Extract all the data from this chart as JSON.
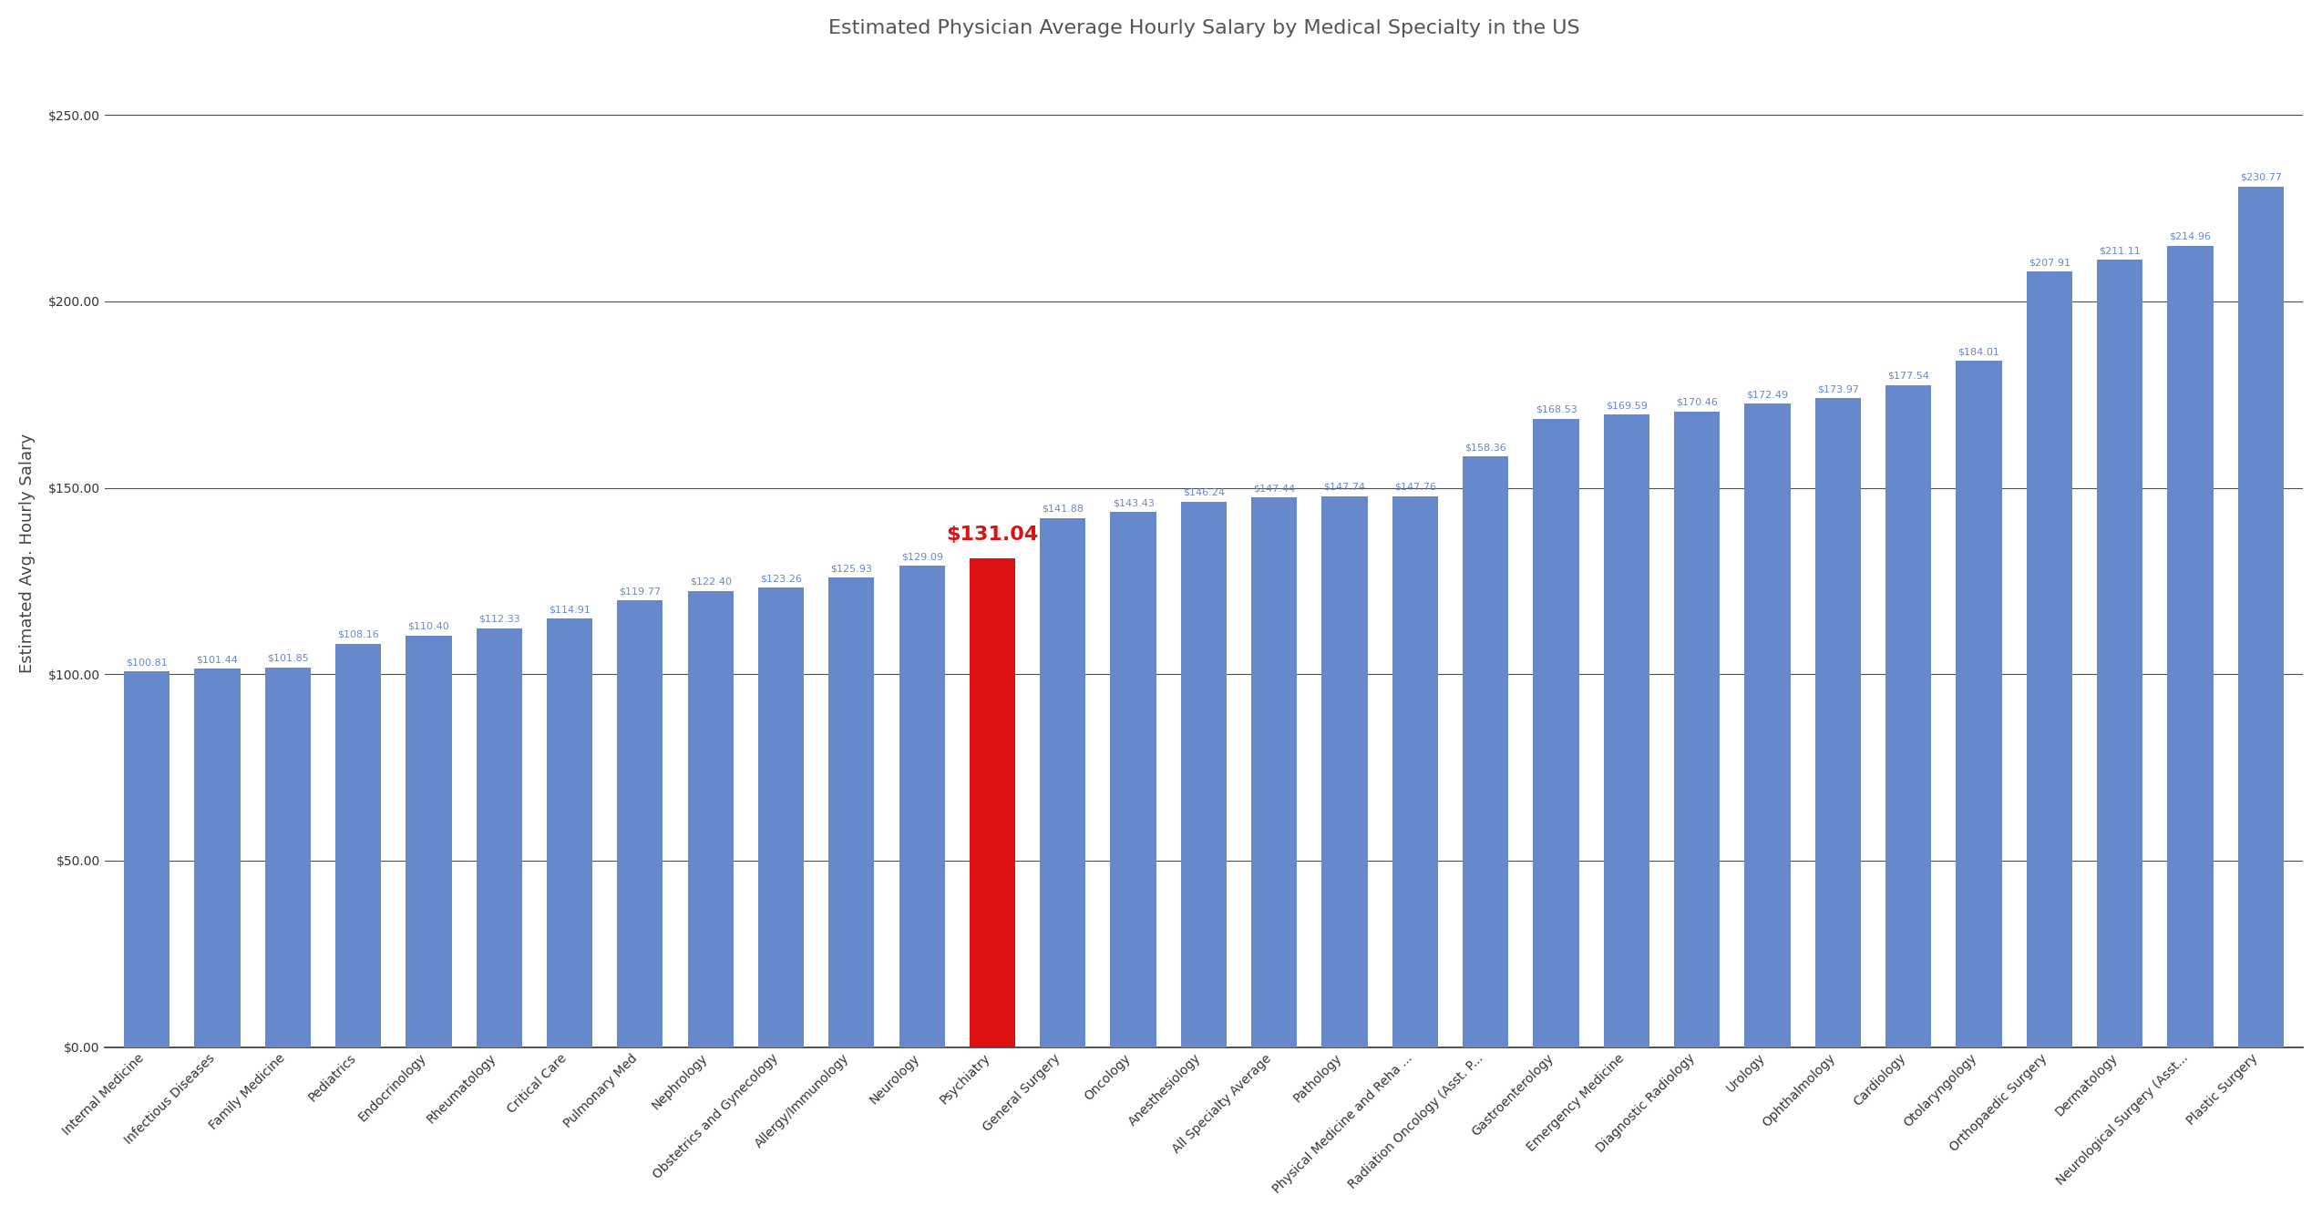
{
  "title": "Estimated Physician Average Hourly Salary by Medical Specialty in the US",
  "ylabel": "Estimated Avg. Hourly Salary",
  "categories": [
    "Internal Medicine",
    "Infectious Diseases",
    "Family Medicine",
    "Pediatrics",
    "Endocrinology",
    "Rheumatology",
    "Critical Care",
    "Pulmonary Med",
    "Nephrology",
    "Obstetrics and Gynecology",
    "Allergy/Immunology",
    "Neurology",
    "Psychiatry",
    "General Surgery",
    "Oncology",
    "Anesthesiology",
    "All Specialty Average",
    "Pathology",
    "Physical Medicine and Reha ...",
    "Radiation Oncology (Asst. P...",
    "Gastroenterology",
    "Emergency Medicine",
    "Diagnostic Radiology",
    "Urology",
    "Ophthalmology",
    "Cardiology",
    "Otolaryngology",
    "Orthopaedic Surgery",
    "Dermatology",
    "Neurological Surgery (Asst...",
    "Plastic Surgery"
  ],
  "values": [
    100.81,
    101.44,
    101.85,
    108.16,
    110.4,
    112.33,
    114.91,
    119.77,
    122.4,
    123.26,
    125.93,
    129.09,
    131.04,
    141.88,
    143.43,
    146.24,
    147.44,
    147.74,
    147.76,
    158.36,
    168.53,
    169.59,
    170.46,
    172.49,
    173.97,
    177.54,
    184.01,
    207.91,
    211.11,
    214.96,
    230.77
  ],
  "bar_colors": [
    "#6688cc",
    "#6688cc",
    "#6688cc",
    "#6688cc",
    "#6688cc",
    "#6688cc",
    "#6688cc",
    "#6688cc",
    "#6688cc",
    "#6688cc",
    "#6688cc",
    "#6688cc",
    "#dd1111",
    "#6688cc",
    "#6688cc",
    "#6688cc",
    "#6688cc",
    "#6688cc",
    "#6688cc",
    "#6688cc",
    "#6688cc",
    "#6688cc",
    "#6688cc",
    "#6688cc",
    "#6688cc",
    "#6688cc",
    "#6688cc",
    "#6688cc",
    "#6688cc",
    "#6688cc",
    "#6688cc"
  ],
  "highlight_index": 12,
  "highlight_color": "#dd1111",
  "normal_color": "#6688cc",
  "label_color_normal": "#6688cc",
  "label_color_highlight": "#dd1111",
  "ylim": [
    0,
    265
  ],
  "yticks": [
    0,
    50,
    100,
    150,
    200,
    250
  ],
  "background_color": "#ffffff",
  "grid_color": "#222222",
  "title_fontsize": 16,
  "label_fontsize": 8,
  "highlight_label_fontsize": 16,
  "ylabel_fontsize": 13,
  "tick_fontsize": 10,
  "xtick_fontsize": 10
}
